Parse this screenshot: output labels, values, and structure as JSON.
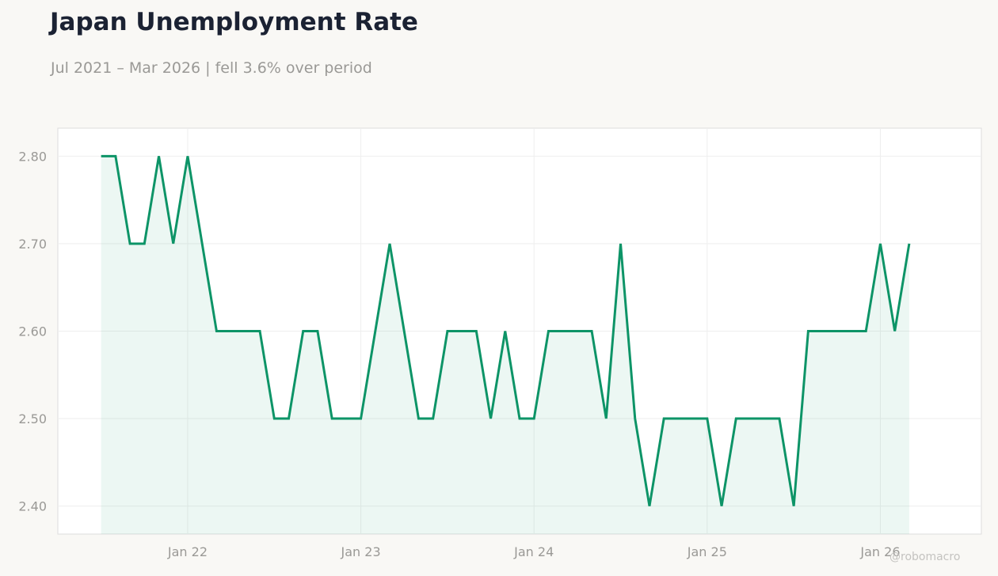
{
  "header": {
    "title": "Japan Unemployment Rate",
    "subtitle": "Jul 2021 – Mar 2026 | fell 3.6% over period"
  },
  "watermark": "@robomacro",
  "colors": {
    "line": "#0d9467",
    "fill": "#0d9467",
    "grid": "#eeeeee",
    "tick_label": "#9a9996",
    "title": "#1b2233",
    "plot_background": "#ffffff",
    "page_background": "#f9f8f5"
  },
  "chart_data": {
    "type": "area",
    "title": "Japan Unemployment Rate",
    "subtitle": "Jul 2021 – Mar 2026 | fell 3.6% over period",
    "xlabel": "",
    "ylabel": "",
    "x_start": "2021-07",
    "x_end": "2026-03",
    "xlim": [
      "2021-04",
      "2026-08"
    ],
    "ylim": [
      2.368,
      2.832
    ],
    "grid": true,
    "x_ticks": [
      {
        "date": "2022-01",
        "label": "Jan 22"
      },
      {
        "date": "2023-01",
        "label": "Jan 23"
      },
      {
        "date": "2024-01",
        "label": "Jan 24"
      },
      {
        "date": "2025-01",
        "label": "Jan 25"
      },
      {
        "date": "2026-01",
        "label": "Jan 26"
      }
    ],
    "y_ticks": [
      {
        "value": 2.4,
        "label": "2.40"
      },
      {
        "value": 2.5,
        "label": "2.50"
      },
      {
        "value": 2.6,
        "label": "2.60"
      },
      {
        "value": 2.7,
        "label": "2.70"
      },
      {
        "value": 2.8,
        "label": "2.80"
      }
    ],
    "series": [
      {
        "x": [
          "2021-07",
          "2021-08",
          "2021-09",
          "2021-10",
          "2021-11",
          "2021-12",
          "2022-01",
          "2022-02",
          "2022-03",
          "2022-04",
          "2022-05",
          "2022-06",
          "2022-07",
          "2022-08",
          "2022-09",
          "2022-10",
          "2022-11",
          "2022-12",
          "2023-01",
          "2023-02",
          "2023-03",
          "2023-04",
          "2023-05",
          "2023-06",
          "2023-07",
          "2023-08",
          "2023-09",
          "2023-10",
          "2023-11",
          "2023-12",
          "2024-01",
          "2024-02",
          "2024-03",
          "2024-04",
          "2024-05",
          "2024-06",
          "2024-07",
          "2024-08",
          "2024-09",
          "2024-10",
          "2024-11",
          "2024-12",
          "2025-01",
          "2025-02",
          "2025-03",
          "2025-04",
          "2025-05",
          "2025-06",
          "2025-07",
          "2025-08",
          "2025-09",
          "2025-10",
          "2025-11",
          "2025-12",
          "2026-01",
          "2026-02",
          "2026-03"
        ],
        "values": [
          2.8,
          2.8,
          2.7,
          2.7,
          2.8,
          2.7,
          2.8,
          2.7,
          2.6,
          2.6,
          2.6,
          2.6,
          2.5,
          2.5,
          2.6,
          2.6,
          2.5,
          2.5,
          2.5,
          2.6,
          2.7,
          2.6,
          2.5,
          2.5,
          2.6,
          2.6,
          2.6,
          2.5,
          2.6,
          2.5,
          2.5,
          2.6,
          2.6,
          2.6,
          2.6,
          2.5,
          2.7,
          2.5,
          2.4,
          2.5,
          2.5,
          2.5,
          2.5,
          2.4,
          2.5,
          2.5,
          2.5,
          2.5,
          2.4,
          2.6,
          2.6,
          2.6,
          2.6,
          2.6,
          2.7,
          2.6,
          2.7
        ]
      }
    ]
  }
}
